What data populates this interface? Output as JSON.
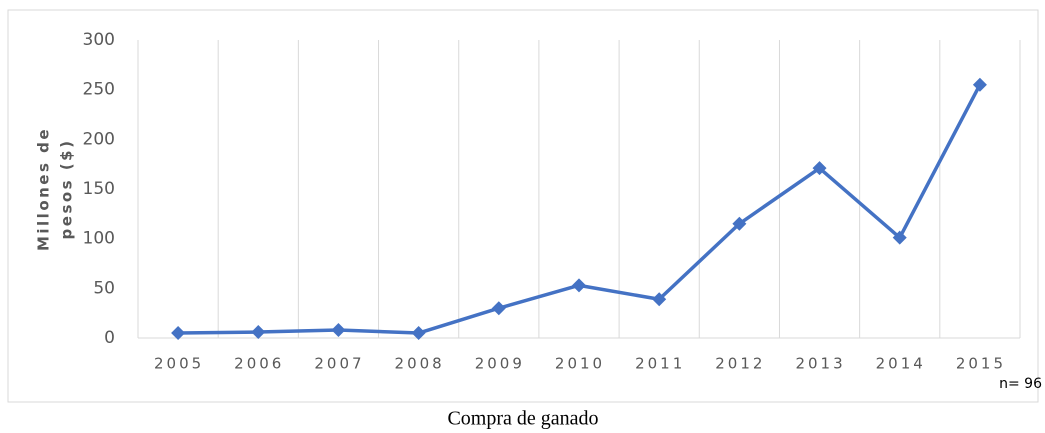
{
  "chart_data": {
    "type": "line",
    "categories": [
      "2005",
      "2006",
      "2007",
      "2008",
      "2009",
      "2010",
      "2011",
      "2012",
      "2013",
      "2014",
      "2015"
    ],
    "values": [
      5,
      6,
      8,
      5,
      30,
      53,
      39,
      115,
      171,
      101,
      255
    ],
    "color": "#4472c4",
    "ylim": [
      0,
      300
    ],
    "yticks": [
      0,
      50,
      100,
      150,
      200,
      250,
      300
    ],
    "ylabel": [
      "Millones de",
      "pesos ($)"
    ],
    "annotation": "n= 96",
    "caption": "Compra de ganado",
    "grid": true
  }
}
